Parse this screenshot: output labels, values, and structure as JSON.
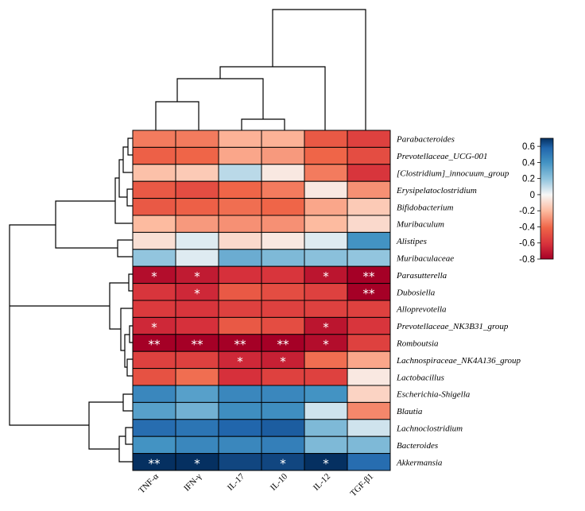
{
  "chart_data": {
    "type": "heatmap",
    "title": "",
    "rows": [
      "Parabacteroides",
      "Prevotellaceae_UCG-001",
      "[Clostridium]_innocuum_group",
      "Erysipelatoclostridium",
      "Bifidobacterium",
      "Muribaculum",
      "Alistipes",
      "Muribaculaceae",
      "Parasutterella",
      "Dubosiella",
      "Alloprevotella",
      "Prevotellaceae_NK3B31_group",
      "Romboutsia",
      "Lachnospiraceae_NK4A136_group",
      "Lactobacillus",
      "Escherichia-Shigella",
      "Blautia",
      "Lachnoclostridium",
      "Bacteroides",
      "Akkermansia"
    ],
    "columns": [
      "TNF-α",
      "IFN-γ",
      "IL-17",
      "IL-10",
      "IL-12",
      "TGF-β1"
    ],
    "values": [
      [
        -0.35,
        -0.35,
        -0.22,
        -0.22,
        -0.45,
        -0.55
      ],
      [
        -0.42,
        -0.4,
        -0.25,
        -0.28,
        -0.4,
        -0.5
      ],
      [
        -0.18,
        -0.15,
        0.12,
        -0.05,
        -0.35,
        -0.6
      ],
      [
        -0.45,
        -0.5,
        -0.4,
        -0.35,
        -0.05,
        -0.3
      ],
      [
        -0.45,
        -0.42,
        -0.38,
        -0.4,
        -0.25,
        -0.15
      ],
      [
        -0.2,
        -0.28,
        -0.3,
        -0.3,
        -0.2,
        -0.1
      ],
      [
        -0.08,
        0.05,
        -0.1,
        -0.05,
        0.05,
        0.4
      ],
      [
        0.2,
        0.05,
        0.3,
        0.25,
        0.22,
        0.2
      ],
      [
        -0.75,
        -0.7,
        -0.62,
        -0.6,
        -0.72,
        -0.8
      ],
      [
        -0.6,
        -0.65,
        -0.45,
        -0.5,
        -0.55,
        -0.8
      ],
      [
        -0.58,
        -0.6,
        -0.55,
        -0.55,
        -0.55,
        -0.55
      ],
      [
        -0.65,
        -0.62,
        -0.45,
        -0.5,
        -0.72,
        -0.6
      ],
      [
        -0.8,
        -0.8,
        -0.8,
        -0.8,
        -0.75,
        -0.55
      ],
      [
        -0.55,
        -0.55,
        -0.65,
        -0.68,
        -0.38,
        -0.25
      ],
      [
        -0.48,
        -0.38,
        -0.62,
        -0.55,
        -0.55,
        -0.05
      ],
      [
        0.45,
        0.35,
        0.45,
        0.45,
        0.4,
        -0.12
      ],
      [
        0.35,
        0.28,
        0.42,
        0.42,
        0.08,
        -0.32
      ],
      [
        0.55,
        0.52,
        0.58,
        0.6,
        0.25,
        0.08
      ],
      [
        0.4,
        0.45,
        0.45,
        0.48,
        0.25,
        0.25
      ],
      [
        0.75,
        0.72,
        0.65,
        0.65,
        0.7,
        0.55
      ]
    ],
    "significance": [
      [
        "",
        "",
        "",
        "",
        "",
        ""
      ],
      [
        "",
        "",
        "",
        "",
        "",
        ""
      ],
      [
        "",
        "",
        "",
        "",
        "",
        ""
      ],
      [
        "",
        "",
        "",
        "",
        "",
        ""
      ],
      [
        "",
        "",
        "",
        "",
        "",
        ""
      ],
      [
        "",
        "",
        "",
        "",
        "",
        ""
      ],
      [
        "",
        "",
        "",
        "",
        "",
        ""
      ],
      [
        "",
        "",
        "",
        "",
        "",
        ""
      ],
      [
        "*",
        "*",
        "",
        "",
        "*",
        "**"
      ],
      [
        "",
        "*",
        "",
        "",
        "",
        "**"
      ],
      [
        "",
        "",
        "",
        "",
        "",
        ""
      ],
      [
        "*",
        "",
        "",
        "",
        "*",
        ""
      ],
      [
        "**",
        "**",
        "**",
        "**",
        "*",
        ""
      ],
      [
        "",
        "",
        "*",
        "*",
        "",
        ""
      ],
      [
        "",
        "",
        "",
        "",
        "",
        ""
      ],
      [
        "",
        "",
        "",
        "",
        "",
        ""
      ],
      [
        "",
        "",
        "",
        "",
        "",
        ""
      ],
      [
        "",
        "",
        "",
        "",
        "",
        ""
      ],
      [
        "",
        "",
        "",
        "",
        "",
        ""
      ],
      [
        "**",
        "*",
        "",
        "*",
        "*",
        ""
      ]
    ],
    "colorbar": {
      "range": [
        -0.8,
        0.7
      ],
      "ticks": [
        "0.6",
        "0.4",
        "0.2",
        "0",
        "-0.2",
        "-0.4",
        "-0.6",
        "-0.8"
      ],
      "tick_values": [
        0.6,
        0.4,
        0.2,
        0,
        -0.2,
        -0.4,
        -0.6,
        -0.8
      ],
      "colors": {
        "max": "#053061",
        "high": "#2166ac",
        "mid_high": "#4393c3",
        "low_high": "#92c5de",
        "near_zero": "#f7f7f7",
        "low_neg": "#fdbba0",
        "mid_neg": "#ef6548",
        "high_neg": "#d6303b",
        "min": "#a50026"
      }
    },
    "row_dendrogram": true,
    "column_dendrogram": true
  }
}
